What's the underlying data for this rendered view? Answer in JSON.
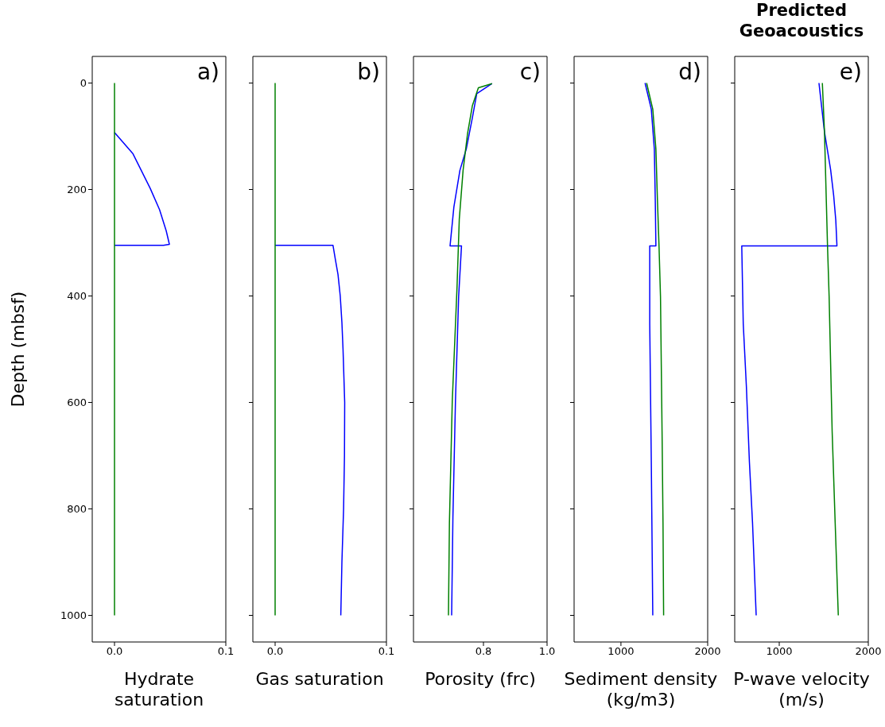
{
  "chart_data": [
    {
      "type": "line",
      "xlabel": "Hydrate saturation",
      "ylabel": "Depth (mbsf)",
      "annotations": [
        "a)"
      ],
      "xlim": [
        -0.02,
        0.1
      ],
      "xticks": [
        {
          "value": 0,
          "label": "0.0"
        },
        0.1
      ],
      "ylim": [
        1050,
        -50
      ],
      "yticks": [
        0,
        200,
        400,
        600,
        800,
        1000
      ],
      "grid": false,
      "series": [
        {
          "color": "#0000ff",
          "x": [
            0,
            0.0166,
            0.0321,
            0.0405,
            0.0465,
            0.0493,
            0.044,
            0
          ],
          "values": [
            93,
            133,
            198,
            238,
            278,
            303,
            305,
            305
          ]
        },
        {
          "color": "#008000",
          "x": [
            0,
            0
          ],
          "values": [
            0,
            1000
          ]
        }
      ]
    },
    {
      "type": "line",
      "xlabel": "Gas saturation",
      "annotations": [
        "b)"
      ],
      "xlim": [
        -0.02,
        0.1
      ],
      "xticks": [
        {
          "value": 0,
          "label": "0.0"
        },
        0.1
      ],
      "ylim": [
        1050,
        -50
      ],
      "yticks": [
        0,
        200,
        400,
        600,
        800,
        1000
      ],
      "tick_labels": "x",
      "grid": false,
      "series": [
        {
          "color": "#0000ff",
          "x": [
            0,
            0.052,
            0.054,
            0.0565,
            0.0585,
            0.06,
            0.061,
            0.0625,
            0.0623,
            0.0615,
            0.06,
            0.059
          ],
          "values": [
            305,
            305,
            330,
            360,
            400,
            450,
            500,
            600,
            700,
            800,
            900,
            1000
          ]
        },
        {
          "color": "#008000",
          "x": [
            0,
            0
          ],
          "values": [
            0,
            1000
          ]
        }
      ]
    },
    {
      "type": "line",
      "xlabel": "Porosity (frc)",
      "annotations": [
        "c)"
      ],
      "xlim": [
        0.58,
        1.0
      ],
      "xticks": [
        {
          "value": 0.8,
          "label": "0.8"
        },
        {
          "value": 1,
          "label": "1.0"
        }
      ],
      "ylim": [
        1050,
        -50
      ],
      "yticks": [
        0,
        200,
        400,
        600,
        800,
        1000
      ],
      "tick_labels": "x",
      "grid": false,
      "series": [
        {
          "color": "#0000ff",
          "x": [
            0.827,
            0.779,
            0.765,
            0.746,
            0.726,
            0.707,
            0.695,
            0.731,
            0.722,
            0.712,
            0.704,
            0.7
          ],
          "values": [
            1,
            20,
            66,
            124,
            164,
            233,
            306,
            306,
            401,
            597,
            815,
            1000
          ]
        },
        {
          "color": "#008000",
          "x": [
            0.827,
            0.784,
            0.765,
            0.75,
            0.736,
            0.724,
            0.717,
            0.702,
            0.693,
            0.69
          ],
          "values": [
            1,
            9,
            43,
            95,
            164,
            256,
            382,
            597,
            826,
            1000
          ]
        }
      ]
    },
    {
      "type": "line",
      "xlabel": "Sediment density (kg/m3)",
      "annotations": [
        "d)"
      ],
      "xlim": [
        460,
        2000
      ],
      "xticks": [
        1000,
        2000
      ],
      "ylim": [
        1050,
        -50
      ],
      "yticks": [
        0,
        200,
        400,
        600,
        800,
        1000
      ],
      "tick_labels": "x",
      "grid": false,
      "series": [
        {
          "color": "#0000ff",
          "x": [
            1278,
            1350,
            1385,
            1396,
            1403,
            1332,
            1332,
            1350,
            1367
          ],
          "values": [
            0,
            49,
            124,
            221,
            306,
            306,
            453,
            712,
            1000
          ]
        },
        {
          "color": "#008000",
          "x": [
            1296,
            1367,
            1403,
            1421,
            1439,
            1456,
            1474,
            1485,
            1492
          ],
          "values": [
            0,
            49,
            124,
            221,
            306,
            401,
            654,
            826,
            1000
          ]
        }
      ]
    },
    {
      "type": "line",
      "title": "Predicted Geoacoustics",
      "xlabel": "P-wave velocity (m/s)",
      "annotations": [
        "e)"
      ],
      "xlim": [
        500,
        2000
      ],
      "xticks": [
        1000,
        2000
      ],
      "ylim": [
        1050,
        -50
      ],
      "yticks": [
        0,
        200,
        400,
        600,
        800,
        1000
      ],
      "tick_labels": "x",
      "grid": false,
      "series": [
        {
          "color": "#0000ff",
          "x": [
            1446,
            1508,
            1577,
            1611,
            1635,
            1648,
            579,
            596,
            631,
            665,
            700,
            741
          ],
          "values": [
            0,
            92,
            163,
            211,
            258,
            306,
            306,
            453,
            570,
            712,
            826,
            1000
          ]
        },
        {
          "color": "#008000",
          "x": [
            1484,
            1508,
            1542,
            1560,
            1594,
            1628,
            1663
          ],
          "values": [
            0,
            92,
            306,
            401,
            654,
            826,
            1000
          ]
        }
      ]
    }
  ]
}
